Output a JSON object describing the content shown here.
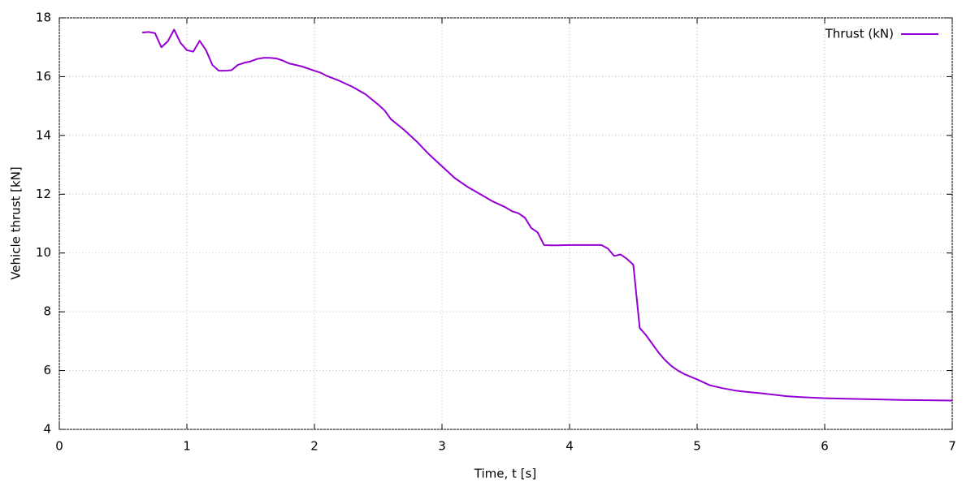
{
  "chart_data": {
    "type": "line",
    "xlabel": "Time, t [s]",
    "ylabel": "Vehicle thrust [kN]",
    "xlim": [
      0,
      7
    ],
    "ylim": [
      4,
      18
    ],
    "xticks": [
      0,
      1,
      2,
      3,
      4,
      5,
      6,
      7
    ],
    "yticks": [
      4,
      6,
      8,
      10,
      12,
      14,
      16,
      18
    ],
    "grid": true,
    "legend": "top-right",
    "x": [
      0.65,
      0.7,
      0.75,
      0.8,
      0.85,
      0.9,
      0.95,
      1.0,
      1.05,
      1.1,
      1.15,
      1.2,
      1.25,
      1.3,
      1.35,
      1.4,
      1.45,
      1.5,
      1.55,
      1.6,
      1.65,
      1.7,
      1.75,
      1.8,
      1.9,
      2.0,
      2.05,
      2.1,
      2.2,
      2.3,
      2.4,
      2.5,
      2.55,
      2.6,
      2.7,
      2.8,
      2.9,
      3.0,
      3.1,
      3.2,
      3.3,
      3.4,
      3.5,
      3.55,
      3.6,
      3.65,
      3.7,
      3.75,
      3.8,
      3.85,
      3.9,
      4.0,
      4.1,
      4.2,
      4.25,
      4.3,
      4.35,
      4.4,
      4.45,
      4.5,
      4.55,
      4.6,
      4.65,
      4.7,
      4.75,
      4.8,
      4.85,
      4.9,
      5.0,
      5.1,
      5.2,
      5.3,
      5.4,
      5.5,
      5.6,
      5.7,
      5.8,
      6.0,
      6.2,
      6.4,
      6.6,
      6.8,
      7.0
    ],
    "series": [
      {
        "name": "Thrust (kN)",
        "color": "#9400d3",
        "values": [
          17.5,
          17.52,
          17.48,
          17.0,
          17.2,
          17.6,
          17.15,
          16.9,
          16.85,
          17.22,
          16.9,
          16.4,
          16.2,
          16.2,
          16.22,
          16.4,
          16.47,
          16.52,
          16.6,
          16.64,
          16.64,
          16.62,
          16.55,
          16.45,
          16.35,
          16.2,
          16.13,
          16.02,
          15.85,
          15.65,
          15.4,
          15.05,
          14.85,
          14.55,
          14.2,
          13.8,
          13.35,
          12.95,
          12.55,
          12.25,
          12.0,
          11.75,
          11.55,
          11.42,
          11.35,
          11.2,
          10.85,
          10.7,
          10.27,
          10.26,
          10.26,
          10.27,
          10.27,
          10.27,
          10.27,
          10.15,
          9.9,
          9.95,
          9.8,
          9.6,
          7.45,
          7.2,
          6.9,
          6.6,
          6.35,
          6.15,
          6.0,
          5.88,
          5.7,
          5.5,
          5.4,
          5.32,
          5.27,
          5.23,
          5.18,
          5.13,
          5.1,
          5.06,
          5.04,
          5.02,
          5.0,
          4.99,
          4.98
        ]
      }
    ]
  }
}
